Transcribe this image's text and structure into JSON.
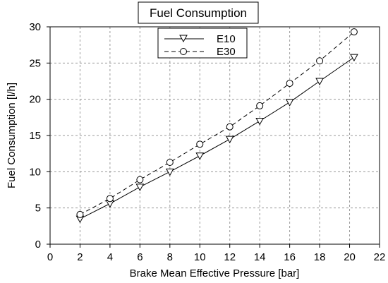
{
  "chart_data": {
    "type": "line",
    "title": "Fuel Consumption",
    "xlabel": "Brake Mean Effective Pressure [bar]",
    "ylabel": "Fuel Consumption [l/h]",
    "xlim": [
      0,
      22
    ],
    "ylim": [
      0,
      30
    ],
    "xticks": [
      "0",
      "2",
      "4",
      "6",
      "8",
      "10",
      "12",
      "14",
      "16",
      "18",
      "20",
      "22"
    ],
    "yticks": [
      "0",
      "5",
      "10",
      "15",
      "20",
      "25",
      "30"
    ],
    "grid": true,
    "legend_position": "top-center",
    "series": [
      {
        "name": "E10",
        "line_style": "solid",
        "marker": "triangle-down",
        "color": "#000000",
        "x": [
          2,
          4,
          6,
          8,
          10,
          12,
          14,
          16,
          18,
          20.3
        ],
        "y": [
          3.5,
          5.6,
          7.9,
          10.0,
          12.2,
          14.5,
          17.0,
          19.6,
          22.5,
          25.8
        ]
      },
      {
        "name": "E30",
        "line_style": "dashed",
        "marker": "circle",
        "color": "#000000",
        "x": [
          2,
          4,
          6,
          8,
          10,
          12,
          14,
          16,
          18,
          20.3
        ],
        "y": [
          4.1,
          6.3,
          8.9,
          11.3,
          13.8,
          16.2,
          19.1,
          22.2,
          25.3,
          29.3
        ]
      }
    ]
  }
}
